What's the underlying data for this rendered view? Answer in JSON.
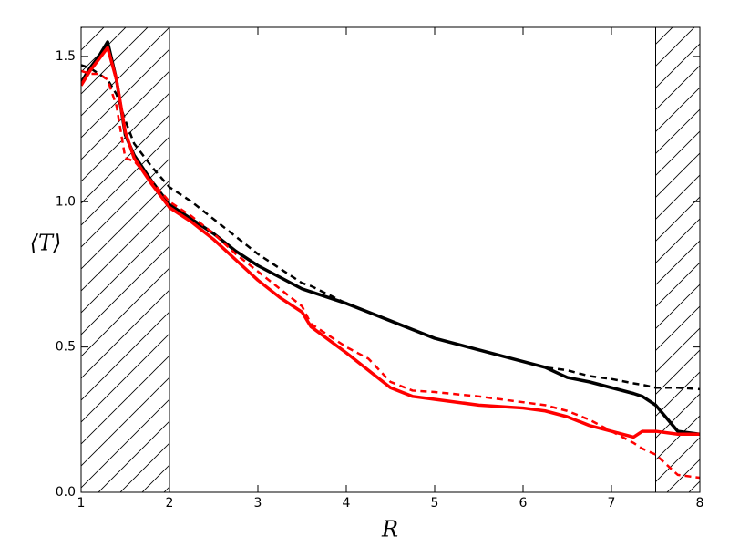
{
  "chart_data": {
    "type": "line",
    "xlabel": "R",
    "ylabel": "⟨T⟩",
    "x": [
      1,
      1.1,
      1.2,
      1.3,
      1.4,
      1.5,
      1.6,
      1.8,
      2,
      2.25,
      2.5,
      2.75,
      3,
      3.25,
      3.5,
      3.6,
      4,
      4.25,
      4.5,
      4.75,
      5,
      5.5,
      6,
      6.25,
      6.5,
      6.75,
      7,
      7.25,
      7.35,
      7.5,
      7.75,
      8
    ],
    "series": [
      {
        "color": "#000000",
        "dashed": false,
        "values": [
          1.41,
          1.46,
          1.5,
          1.55,
          1.42,
          1.23,
          1.16,
          1.07,
          0.99,
          0.94,
          0.89,
          0.83,
          0.78,
          0.74,
          0.7,
          0.69,
          0.65,
          0.62,
          0.59,
          0.56,
          0.53,
          0.49,
          0.45,
          0.43,
          0.395,
          0.38,
          0.36,
          0.34,
          0.33,
          0.3,
          0.21,
          0.2
        ]
      },
      {
        "color": "#000000",
        "dashed": true,
        "values": [
          1.47,
          1.46,
          1.44,
          1.42,
          1.37,
          1.28,
          1.2,
          1.12,
          1.05,
          1.0,
          0.94,
          0.88,
          0.82,
          0.77,
          0.72,
          0.71,
          0.65,
          0.62,
          0.59,
          0.56,
          0.53,
          0.49,
          0.45,
          0.43,
          0.42,
          0.4,
          0.39,
          0.375,
          0.37,
          0.36,
          0.36,
          0.355
        ]
      },
      {
        "color": "#ff0000",
        "dashed": false,
        "values": [
          1.4,
          1.45,
          1.49,
          1.53,
          1.42,
          1.24,
          1.15,
          1.06,
          0.98,
          0.93,
          0.87,
          0.8,
          0.73,
          0.67,
          0.62,
          0.57,
          0.48,
          0.42,
          0.36,
          0.33,
          0.32,
          0.3,
          0.29,
          0.28,
          0.26,
          0.23,
          0.21,
          0.19,
          0.21,
          0.21,
          0.2,
          0.2
        ]
      },
      {
        "color": "#ff0000",
        "dashed": true,
        "values": [
          1.45,
          1.44,
          1.44,
          1.42,
          1.33,
          1.15,
          1.14,
          1.07,
          1.0,
          0.95,
          0.89,
          0.82,
          0.76,
          0.7,
          0.64,
          0.58,
          0.5,
          0.46,
          0.38,
          0.35,
          0.345,
          0.33,
          0.31,
          0.3,
          0.28,
          0.25,
          0.21,
          0.17,
          0.15,
          0.13,
          0.06,
          0.05
        ]
      }
    ],
    "shaded_regions": [
      [
        1,
        2
      ],
      [
        7.5,
        8
      ]
    ],
    "xlim": [
      1,
      8
    ],
    "ylim": [
      0,
      1.6
    ],
    "xticks": [
      1,
      2,
      3,
      4,
      5,
      6,
      7,
      8
    ],
    "yticks": [
      {
        "value": 0,
        "label": "0.0"
      },
      0.5,
      {
        "value": 1,
        "label": "1.0"
      },
      1.5
    ],
    "grid": false
  }
}
